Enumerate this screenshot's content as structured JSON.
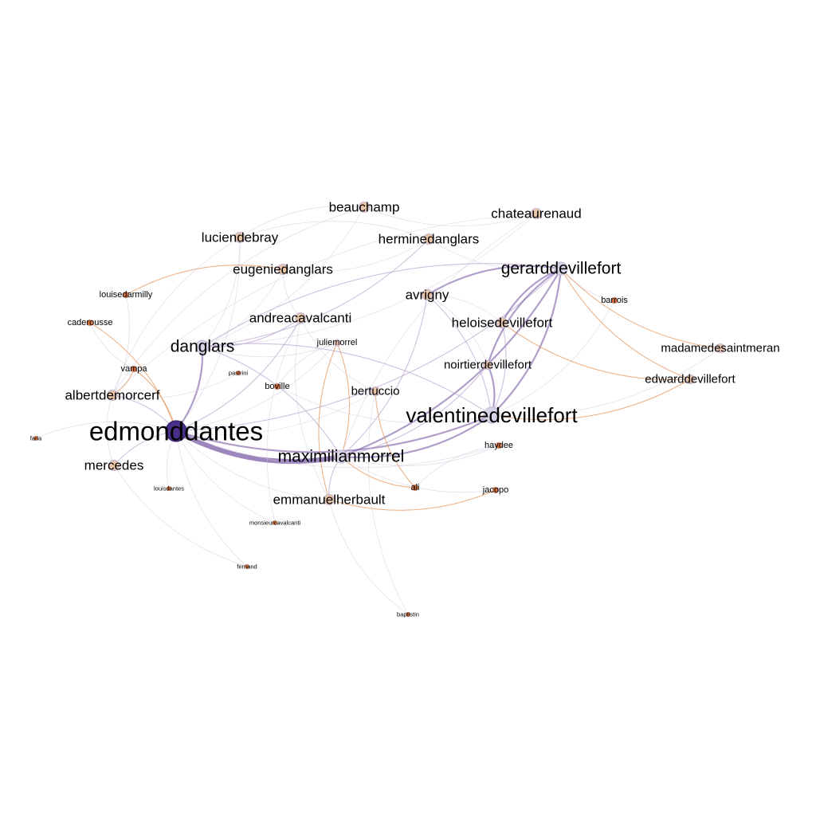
{
  "graph": {
    "colors": {
      "edge_strong": "#7b5ea7",
      "edge_mid": "#b9a6d0",
      "edge_orange": "#e08a4c",
      "edge_faint": "#cfc6da",
      "node_big": "#4a2f8a",
      "node_lavender": "#d8d4e8",
      "node_peach": "#e8c4a8",
      "node_orange": "#d9733a",
      "node_stroke": "#c9bdd6"
    },
    "nodes": [
      {
        "id": "edmonddantes",
        "label": "edmonddantes",
        "size": "xxl",
        "color": "node_big"
      },
      {
        "id": "valentinedevillefort",
        "label": "valentinedevillefort",
        "size": "xl",
        "color": "node_lavender"
      },
      {
        "id": "maximilianmorrel",
        "label": "maximilianmorrel",
        "size": "l",
        "color": "node_lavender"
      },
      {
        "id": "gerarddevillefort",
        "label": "gerarddevillefort",
        "size": "l",
        "color": "node_lavender"
      },
      {
        "id": "danglars",
        "label": "danglars",
        "size": "l",
        "color": "node_lavender"
      },
      {
        "id": "andreacavalcanti",
        "label": "andreacavalcanti",
        "size": "m",
        "color": "node_peach"
      },
      {
        "id": "luciendebray",
        "label": "luciendebray",
        "size": "m",
        "color": "node_peach"
      },
      {
        "id": "beauchamp",
        "label": "beauchamp",
        "size": "m",
        "color": "node_peach"
      },
      {
        "id": "chateaurenaud",
        "label": "chateaurenaud",
        "size": "m",
        "color": "node_peach"
      },
      {
        "id": "herminedanglars",
        "label": "herminedanglars",
        "size": "m",
        "color": "node_peach"
      },
      {
        "id": "eugeniedanglars",
        "label": "eugeniedanglars",
        "size": "m",
        "color": "node_peach"
      },
      {
        "id": "avrigny",
        "label": "avrigny",
        "size": "m",
        "color": "node_peach"
      },
      {
        "id": "heloisedevillefort",
        "label": "heloisedevillefort",
        "size": "m",
        "color": "node_peach"
      },
      {
        "id": "noirtierdevillefort",
        "label": "noirtierdevillefort",
        "size": "s",
        "color": "node_peach"
      },
      {
        "id": "madamedesaintmeran",
        "label": "madamedesaintmeran",
        "size": "s",
        "color": "node_peach"
      },
      {
        "id": "edwarddevillefort",
        "label": "edwarddevillefort",
        "size": "s",
        "color": "node_peach"
      },
      {
        "id": "albertdemorcerf",
        "label": "albertdemorcerf",
        "size": "m",
        "color": "node_peach"
      },
      {
        "id": "mercedes",
        "label": "mercedes",
        "size": "m",
        "color": "node_peach"
      },
      {
        "id": "emmanuelherbault",
        "label": "emmanuelherbault",
        "size": "m",
        "color": "node_peach"
      },
      {
        "id": "bertuccio",
        "label": "bertuccio",
        "size": "s",
        "color": "node_peach"
      },
      {
        "id": "juliemorrel",
        "label": "juliemorrel",
        "size": "xs",
        "color": "node_peach"
      },
      {
        "id": "louisedarmilly",
        "label": "louisedarmilly",
        "size": "xs",
        "color": "node_orange"
      },
      {
        "id": "caderousse",
        "label": "caderousse",
        "size": "xs",
        "color": "node_orange"
      },
      {
        "id": "vampa",
        "label": "vampa",
        "size": "xs",
        "color": "node_orange"
      },
      {
        "id": "pastrini",
        "label": "pastrini",
        "size": "xxs",
        "color": "node_orange"
      },
      {
        "id": "boville",
        "label": "boville",
        "size": "xs",
        "color": "node_orange"
      },
      {
        "id": "haydee",
        "label": "haydee",
        "size": "xs",
        "color": "node_orange"
      },
      {
        "id": "ali",
        "label": "ali",
        "size": "xs",
        "color": "node_orange"
      },
      {
        "id": "jacopo",
        "label": "jacopo",
        "size": "xs",
        "color": "node_orange"
      },
      {
        "id": "barrois",
        "label": "barrois",
        "size": "xs",
        "color": "node_orange"
      },
      {
        "id": "louisdantes",
        "label": "louisdantes",
        "size": "xxs",
        "color": "node_orange"
      },
      {
        "id": "monsieurcavalcanti",
        "label": "monsieurcavalcanti",
        "size": "xxs",
        "color": "node_orange"
      },
      {
        "id": "fernand",
        "label": "fernand",
        "size": "xxs",
        "color": "node_orange"
      },
      {
        "id": "baptistin",
        "label": "baptistin",
        "size": "xxs",
        "color": "node_orange"
      },
      {
        "id": "faria",
        "label": "faria",
        "size": "xxs",
        "color": "node_orange"
      }
    ],
    "edges": [
      {
        "from": "edmonddantes",
        "to": "maximilianmorrel",
        "weight": "strong"
      },
      {
        "from": "edmonddantes",
        "to": "valentinedevillefort",
        "weight": "mid"
      },
      {
        "from": "edmonddantes",
        "to": "danglars",
        "weight": "mid"
      },
      {
        "from": "edmonddantes",
        "to": "gerarddevillefort",
        "weight": "thin"
      },
      {
        "from": "edmonddantes",
        "to": "andreacavalcanti",
        "weight": "thin"
      },
      {
        "from": "edmonddantes",
        "to": "mercedes",
        "weight": "thin"
      },
      {
        "from": "edmonddantes",
        "to": "albertdemorcerf",
        "weight": "thin"
      },
      {
        "from": "edmonddantes",
        "to": "luciendebray",
        "weight": "faint"
      },
      {
        "from": "edmonddantes",
        "to": "juliemorrel",
        "weight": "faint"
      },
      {
        "from": "edmonddantes",
        "to": "emmanuelherbault",
        "weight": "faint"
      },
      {
        "from": "edmonddantes",
        "to": "louisdantes",
        "weight": "faint"
      },
      {
        "from": "edmonddantes",
        "to": "fernand",
        "weight": "faint"
      },
      {
        "from": "edmonddantes",
        "to": "faria",
        "weight": "faint"
      },
      {
        "from": "edmonddantes",
        "to": "caderousse",
        "weight": "orange"
      },
      {
        "from": "edmonddantes",
        "to": "vampa",
        "weight": "orange"
      },
      {
        "from": "edmonddantes",
        "to": "bertuccio",
        "weight": "faint"
      },
      {
        "from": "edmonddantes",
        "to": "haydee",
        "weight": "faint"
      },
      {
        "from": "edmonddantes",
        "to": "monsieurcavalcanti",
        "weight": "faint"
      },
      {
        "from": "maximilianmorrel",
        "to": "valentinedevillefort",
        "weight": "mid"
      },
      {
        "from": "maximilianmorrel",
        "to": "gerarddevillefort",
        "weight": "mid"
      },
      {
        "from": "maximilianmorrel",
        "to": "emmanuelherbault",
        "weight": "thin"
      },
      {
        "from": "maximilianmorrel",
        "to": "juliemorrel",
        "weight": "orange"
      },
      {
        "from": "maximilianmorrel",
        "to": "noirtierdevillefort",
        "weight": "thin"
      },
      {
        "from": "maximilianmorrel",
        "to": "avrigny",
        "weight": "thin"
      },
      {
        "from": "maximilianmorrel",
        "to": "danglars",
        "weight": "thin"
      },
      {
        "from": "maximilianmorrel",
        "to": "haydee",
        "weight": "faint"
      },
      {
        "from": "maximilianmorrel",
        "to": "ali",
        "weight": "orange"
      },
      {
        "from": "maximilianmorrel",
        "to": "jacopo",
        "weight": "faint"
      },
      {
        "from": "valentinedevillefort",
        "to": "gerarddevillefort",
        "weight": "mid"
      },
      {
        "from": "valentinedevillefort",
        "to": "noirtierdevillefort",
        "weight": "mid"
      },
      {
        "from": "valentinedevillefort",
        "to": "heloisedevillefort",
        "weight": "thin"
      },
      {
        "from": "valentinedevillefort",
        "to": "avrigny",
        "weight": "thin"
      },
      {
        "from": "valentinedevillefort",
        "to": "edwarddevillefort",
        "weight": "orange"
      },
      {
        "from": "valentinedevillefort",
        "to": "madamedesaintmeran",
        "weight": "faint"
      },
      {
        "from": "valentinedevillefort",
        "to": "barrois",
        "weight": "faint"
      },
      {
        "from": "valentinedevillefort",
        "to": "danglars",
        "weight": "thin"
      },
      {
        "from": "gerarddevillefort",
        "to": "avrigny",
        "weight": "mid"
      },
      {
        "from": "gerarddevillefort",
        "to": "heloisedevillefort",
        "weight": "mid"
      },
      {
        "from": "gerarddevillefort",
        "to": "noirtierdevillefort",
        "weight": "mid"
      },
      {
        "from": "gerarddevillefort",
        "to": "barrois",
        "weight": "faint"
      },
      {
        "from": "gerarddevillefort",
        "to": "madamedesaintmeran",
        "weight": "orange"
      },
      {
        "from": "gerarddevillefort",
        "to": "edwarddevillefort",
        "weight": "orange"
      },
      {
        "from": "gerarddevillefort",
        "to": "danglars",
        "weight": "thin"
      },
      {
        "from": "heloisedevillefort",
        "to": "edwarddevillefort",
        "weight": "orange"
      },
      {
        "from": "heloisedevillefort",
        "to": "avrigny",
        "weight": "faint"
      },
      {
        "from": "noirtierdevillefort",
        "to": "avrigny",
        "weight": "faint"
      },
      {
        "from": "danglars",
        "to": "andreacavalcanti",
        "weight": "thin"
      },
      {
        "from": "danglars",
        "to": "herminedanglars",
        "weight": "thin"
      },
      {
        "from": "danglars",
        "to": "eugeniedanglars",
        "weight": "faint"
      },
      {
        "from": "danglars",
        "to": "luciendebray",
        "weight": "faint"
      },
      {
        "from": "danglars",
        "to": "beauchamp",
        "weight": "faint"
      },
      {
        "from": "danglars",
        "to": "chateaurenaud",
        "weight": "faint"
      },
      {
        "from": "danglars",
        "to": "juliemorrel",
        "weight": "faint"
      },
      {
        "from": "eugeniedanglars",
        "to": "louisedarmilly",
        "weight": "orange"
      },
      {
        "from": "eugeniedanglars",
        "to": "herminedanglars",
        "weight": "faint"
      },
      {
        "from": "eugeniedanglars",
        "to": "andreacavalcanti",
        "weight": "faint"
      },
      {
        "from": "herminedanglars",
        "to": "luciendebray",
        "weight": "faint"
      },
      {
        "from": "herminedanglars",
        "to": "gerarddevillefort",
        "weight": "faint"
      },
      {
        "from": "beauchamp",
        "to": "albertdemorcerf",
        "weight": "faint"
      },
      {
        "from": "beauchamp",
        "to": "chateaurenaud",
        "weight": "faint"
      },
      {
        "from": "beauchamp",
        "to": "luciendebray",
        "weight": "faint"
      },
      {
        "from": "chateaurenaud",
        "to": "albertdemorcerf",
        "weight": "faint"
      },
      {
        "from": "chateaurenaud",
        "to": "maximilianmorrel",
        "weight": "faint"
      },
      {
        "from": "luciendebray",
        "to": "albertdemorcerf",
        "weight": "faint"
      },
      {
        "from": "albertdemorcerf",
        "to": "mercedes",
        "weight": "faint"
      },
      {
        "from": "albertdemorcerf",
        "to": "louisedarmilly",
        "weight": "faint"
      },
      {
        "from": "albertdemorcerf",
        "to": "vampa",
        "weight": "orange"
      },
      {
        "from": "albertdemorcerf",
        "to": "pastrini",
        "weight": "faint"
      },
      {
        "from": "andreacavalcanti",
        "to": "bertuccio",
        "weight": "faint"
      },
      {
        "from": "andreacavalcanti",
        "to": "monsieurcavalcanti",
        "weight": "faint"
      },
      {
        "from": "andreacavalcanti",
        "to": "emmanuelherbault",
        "weight": "faint"
      },
      {
        "from": "juliemorrel",
        "to": "emmanuelherbault",
        "weight": "orange"
      },
      {
        "from": "juliemorrel",
        "to": "boville",
        "weight": "faint"
      },
      {
        "from": "bertuccio",
        "to": "baptistin",
        "weight": "faint"
      },
      {
        "from": "bertuccio",
        "to": "ali",
        "weight": "orange"
      },
      {
        "from": "haydee",
        "to": "ali",
        "weight": "faint"
      },
      {
        "from": "emmanuelherbault",
        "to": "jacopo",
        "weight": "orange"
      },
      {
        "from": "emmanuelherbault",
        "to": "baptistin",
        "weight": "faint"
      },
      {
        "from": "mercedes",
        "to": "fernand",
        "weight": "faint"
      },
      {
        "from": "caderousse",
        "to": "vampa",
        "weight": "faint"
      },
      {
        "from": "boville",
        "to": "valentinedevillefort",
        "weight": "faint"
      }
    ]
  }
}
